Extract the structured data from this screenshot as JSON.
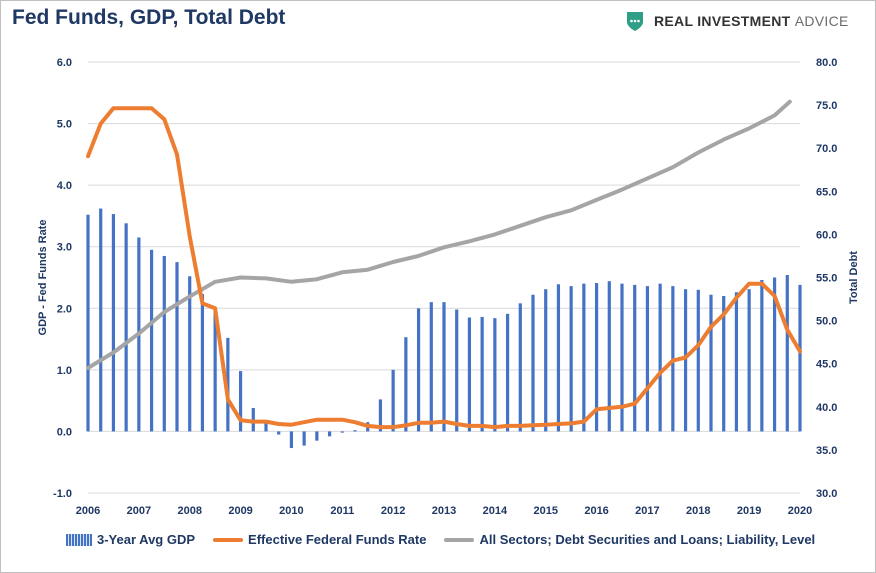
{
  "header": {
    "title": "Fed Funds, GDP, Total Debt",
    "brand_text_bold": "REAL INVESTMENT",
    "brand_text_light": "ADVICE",
    "brand_color": "#2e9e86"
  },
  "chart_data": {
    "type": "bar+line",
    "title": "Fed Funds, GDP, Total Debt",
    "xlabel": "",
    "ylabel_left": "GDP - Fed Funds Rate",
    "ylabel_right": "Total Debt",
    "ylim_left": [
      -1.0,
      6.0
    ],
    "ylim_right": [
      30.0,
      80.0
    ],
    "xlim": [
      2006,
      2020
    ],
    "x_ticks": [
      "2006",
      "2007",
      "2008",
      "2009",
      "2010",
      "2011",
      "2012",
      "2013",
      "2014",
      "2015",
      "2016",
      "2017",
      "2018",
      "2019",
      "2020"
    ],
    "y_ticks_left": [
      "6.0",
      "5.0",
      "4.0",
      "3.0",
      "2.0",
      "1.0",
      "0.0",
      "-1.0"
    ],
    "y_ticks_right": [
      "80.0",
      "75.0",
      "70.0",
      "65.0",
      "60.0",
      "55.0",
      "50.0",
      "45.0",
      "40.0",
      "35.0",
      "30.0"
    ],
    "grid": true,
    "legend_position": "bottom",
    "series": [
      {
        "name": "3-Year Avg GDP",
        "type": "bar",
        "axis": "left",
        "color": "#4472c4",
        "x": [
          2006.0,
          2006.25,
          2006.5,
          2006.75,
          2007.0,
          2007.25,
          2007.5,
          2007.75,
          2008.0,
          2008.25,
          2008.5,
          2008.75,
          2009.0,
          2009.25,
          2009.5,
          2009.75,
          2010.0,
          2010.25,
          2010.5,
          2010.75,
          2011.0,
          2011.25,
          2011.5,
          2011.75,
          2012.0,
          2012.25,
          2012.5,
          2012.75,
          2013.0,
          2013.25,
          2013.5,
          2013.75,
          2014.0,
          2014.25,
          2014.5,
          2014.75,
          2015.0,
          2015.25,
          2015.5,
          2015.75,
          2016.0,
          2016.25,
          2016.5,
          2016.75,
          2017.0,
          2017.25,
          2017.5,
          2017.75,
          2018.0,
          2018.25,
          2018.5,
          2018.75,
          2019.0,
          2019.25,
          2019.5,
          2019.75,
          2020.0
        ],
        "values": [
          3.52,
          3.62,
          3.53,
          3.38,
          3.15,
          2.95,
          2.85,
          2.75,
          2.52,
          2.23,
          2.02,
          1.52,
          0.98,
          0.38,
          0.15,
          -0.05,
          -0.27,
          -0.23,
          -0.15,
          -0.08,
          -0.02,
          0.02,
          0.15,
          0.52,
          1.0,
          1.53,
          2.0,
          2.1,
          2.1,
          1.98,
          1.85,
          1.86,
          1.84,
          1.91,
          2.08,
          2.22,
          2.31,
          2.39,
          2.36,
          2.4,
          2.41,
          2.44,
          2.4,
          2.38,
          2.36,
          2.4,
          2.36,
          2.31,
          2.3,
          2.22,
          2.2,
          2.26,
          2.31,
          2.46,
          2.5,
          2.54,
          2.38
        ]
      },
      {
        "name": "Effective Federal Funds Rate",
        "type": "line",
        "axis": "left",
        "color": "#ed7d31",
        "x": [
          2006.0,
          2006.25,
          2006.5,
          2006.75,
          2007.0,
          2007.25,
          2007.5,
          2007.75,
          2008.0,
          2008.25,
          2008.5,
          2008.75,
          2009.0,
          2009.25,
          2009.5,
          2009.75,
          2010.0,
          2010.25,
          2010.5,
          2010.75,
          2011.0,
          2011.25,
          2011.5,
          2011.75,
          2012.0,
          2012.25,
          2012.5,
          2012.75,
          2013.0,
          2013.25,
          2013.5,
          2013.75,
          2014.0,
          2014.25,
          2014.5,
          2014.75,
          2015.0,
          2015.25,
          2015.5,
          2015.75,
          2016.0,
          2016.25,
          2016.5,
          2016.75,
          2017.0,
          2017.25,
          2017.5,
          2017.75,
          2018.0,
          2018.25,
          2018.5,
          2018.75,
          2019.0,
          2019.25,
          2019.5,
          2019.75,
          2020.0
        ],
        "values": [
          4.47,
          5.0,
          5.25,
          5.25,
          5.25,
          5.25,
          5.07,
          4.5,
          3.17,
          2.08,
          2.0,
          0.52,
          0.18,
          0.16,
          0.16,
          0.12,
          0.11,
          0.15,
          0.19,
          0.19,
          0.19,
          0.15,
          0.09,
          0.07,
          0.07,
          0.1,
          0.14,
          0.14,
          0.16,
          0.12,
          0.09,
          0.09,
          0.07,
          0.09,
          0.09,
          0.1,
          0.11,
          0.12,
          0.13,
          0.16,
          0.36,
          0.38,
          0.4,
          0.45,
          0.7,
          0.95,
          1.15,
          1.2,
          1.4,
          1.7,
          1.9,
          2.17,
          2.4,
          2.4,
          2.2,
          1.65,
          1.3
        ]
      },
      {
        "name": "All Sectors; Debt Securities and Loans; Liability, Level",
        "type": "line",
        "axis": "right",
        "color": "#a5a5a5",
        "x": [
          2006.0,
          2006.5,
          2007.0,
          2007.5,
          2008.0,
          2008.5,
          2009.0,
          2009.5,
          2010.0,
          2010.5,
          2011.0,
          2011.5,
          2012.0,
          2012.5,
          2013.0,
          2013.5,
          2014.0,
          2014.5,
          2015.0,
          2015.5,
          2016.0,
          2016.5,
          2017.0,
          2017.5,
          2018.0,
          2018.5,
          2019.0,
          2019.5,
          2019.8
        ],
        "values": [
          44.5,
          46.3,
          48.5,
          51.0,
          52.8,
          54.5,
          55.0,
          54.9,
          54.5,
          54.8,
          55.6,
          55.9,
          56.8,
          57.5,
          58.5,
          59.2,
          60.0,
          61.0,
          62.0,
          62.8,
          64.0,
          65.2,
          66.5,
          67.8,
          69.5,
          71.0,
          72.3,
          73.8,
          75.4
        ]
      }
    ]
  }
}
